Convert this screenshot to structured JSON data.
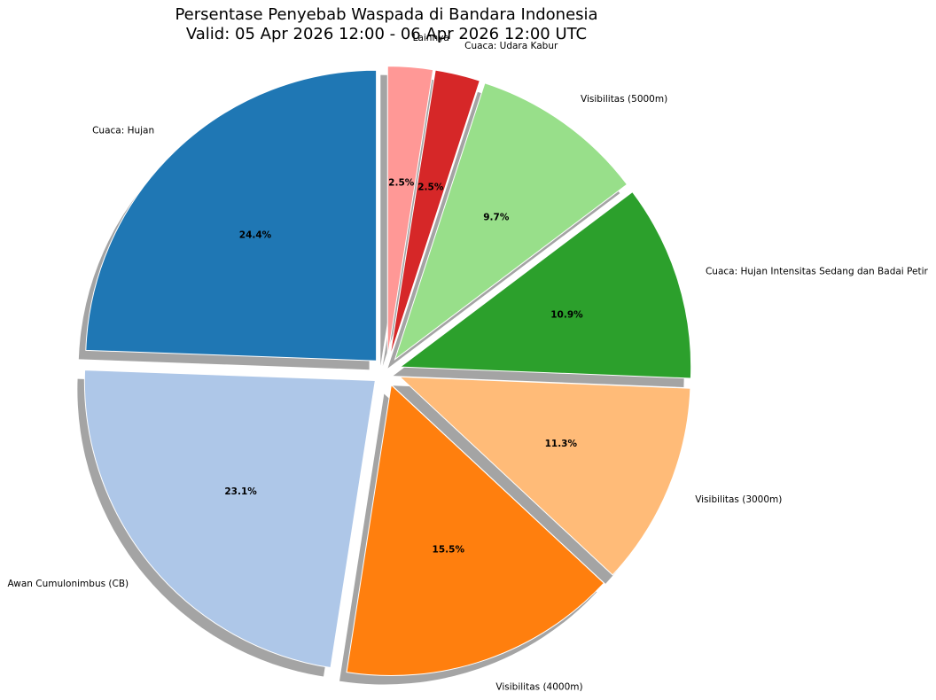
{
  "chart_data": {
    "type": "pie",
    "title": "Persentase Penyebab Waspada di Bandara Indonesia",
    "subtitle": "Valid: 05 Apr 2026 12:00 - 06 Apr 2026 12:00 UTC",
    "start_angle_deg": 90,
    "direction": "counterclockwise",
    "shadow": true,
    "exploded": true,
    "slices": [
      {
        "label": "Cuaca: Hujan",
        "value": 24.4,
        "pct_label": "24.4%",
        "color": "#1f77b4"
      },
      {
        "label": "Awan Cumulonimbus (CB)",
        "value": 23.1,
        "pct_label": "23.1%",
        "color": "#aec7e8"
      },
      {
        "label": "Visibilitas (4000m)",
        "value": 15.5,
        "pct_label": "15.5%",
        "color": "#ff7f0e"
      },
      {
        "label": "Visibilitas (3000m)",
        "value": 11.3,
        "pct_label": "11.3%",
        "color": "#ffbb78"
      },
      {
        "label": "Cuaca: Hujan Intensitas Sedang dan Badai Petir",
        "value": 10.9,
        "pct_label": "10.9%",
        "color": "#2ca02c"
      },
      {
        "label": "Visibilitas (5000m)",
        "value": 9.7,
        "pct_label": "9.7%",
        "color": "#98df8a"
      },
      {
        "label": "Cuaca: Udara Kabur",
        "value": 2.5,
        "pct_label": "2.5%",
        "color": "#d62728"
      },
      {
        "label": "Lainnya",
        "value": 2.5,
        "pct_label": "2.5%",
        "color": "#ff9896"
      }
    ]
  }
}
